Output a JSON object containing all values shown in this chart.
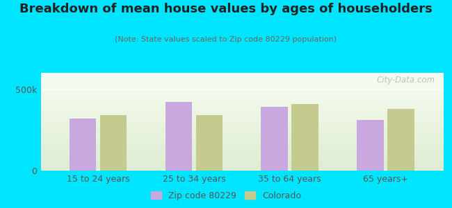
{
  "title": "Breakdown of mean house values by ages of householders",
  "subtitle": "(Note: State values scaled to Zip code 80229 population)",
  "categories": [
    "15 to 24 years",
    "25 to 34 years",
    "35 to 64 years",
    "65 years+"
  ],
  "zip_values": [
    320000,
    420000,
    390000,
    310000
  ],
  "state_values": [
    340000,
    340000,
    410000,
    380000
  ],
  "ylim": [
    0,
    600000
  ],
  "yticks": [
    0,
    500000
  ],
  "ytick_labels": [
    "0",
    "500k"
  ],
  "zip_color": "#c9a8e0",
  "state_color": "#c5ca8e",
  "outer_bg": "#00e5ff",
  "legend_zip_label": "Zip code 80229",
  "legend_state_label": "Colorado",
  "watermark": "City-Data.com",
  "title_fontsize": 13,
  "subtitle_fontsize": 8,
  "tick_fontsize": 9
}
